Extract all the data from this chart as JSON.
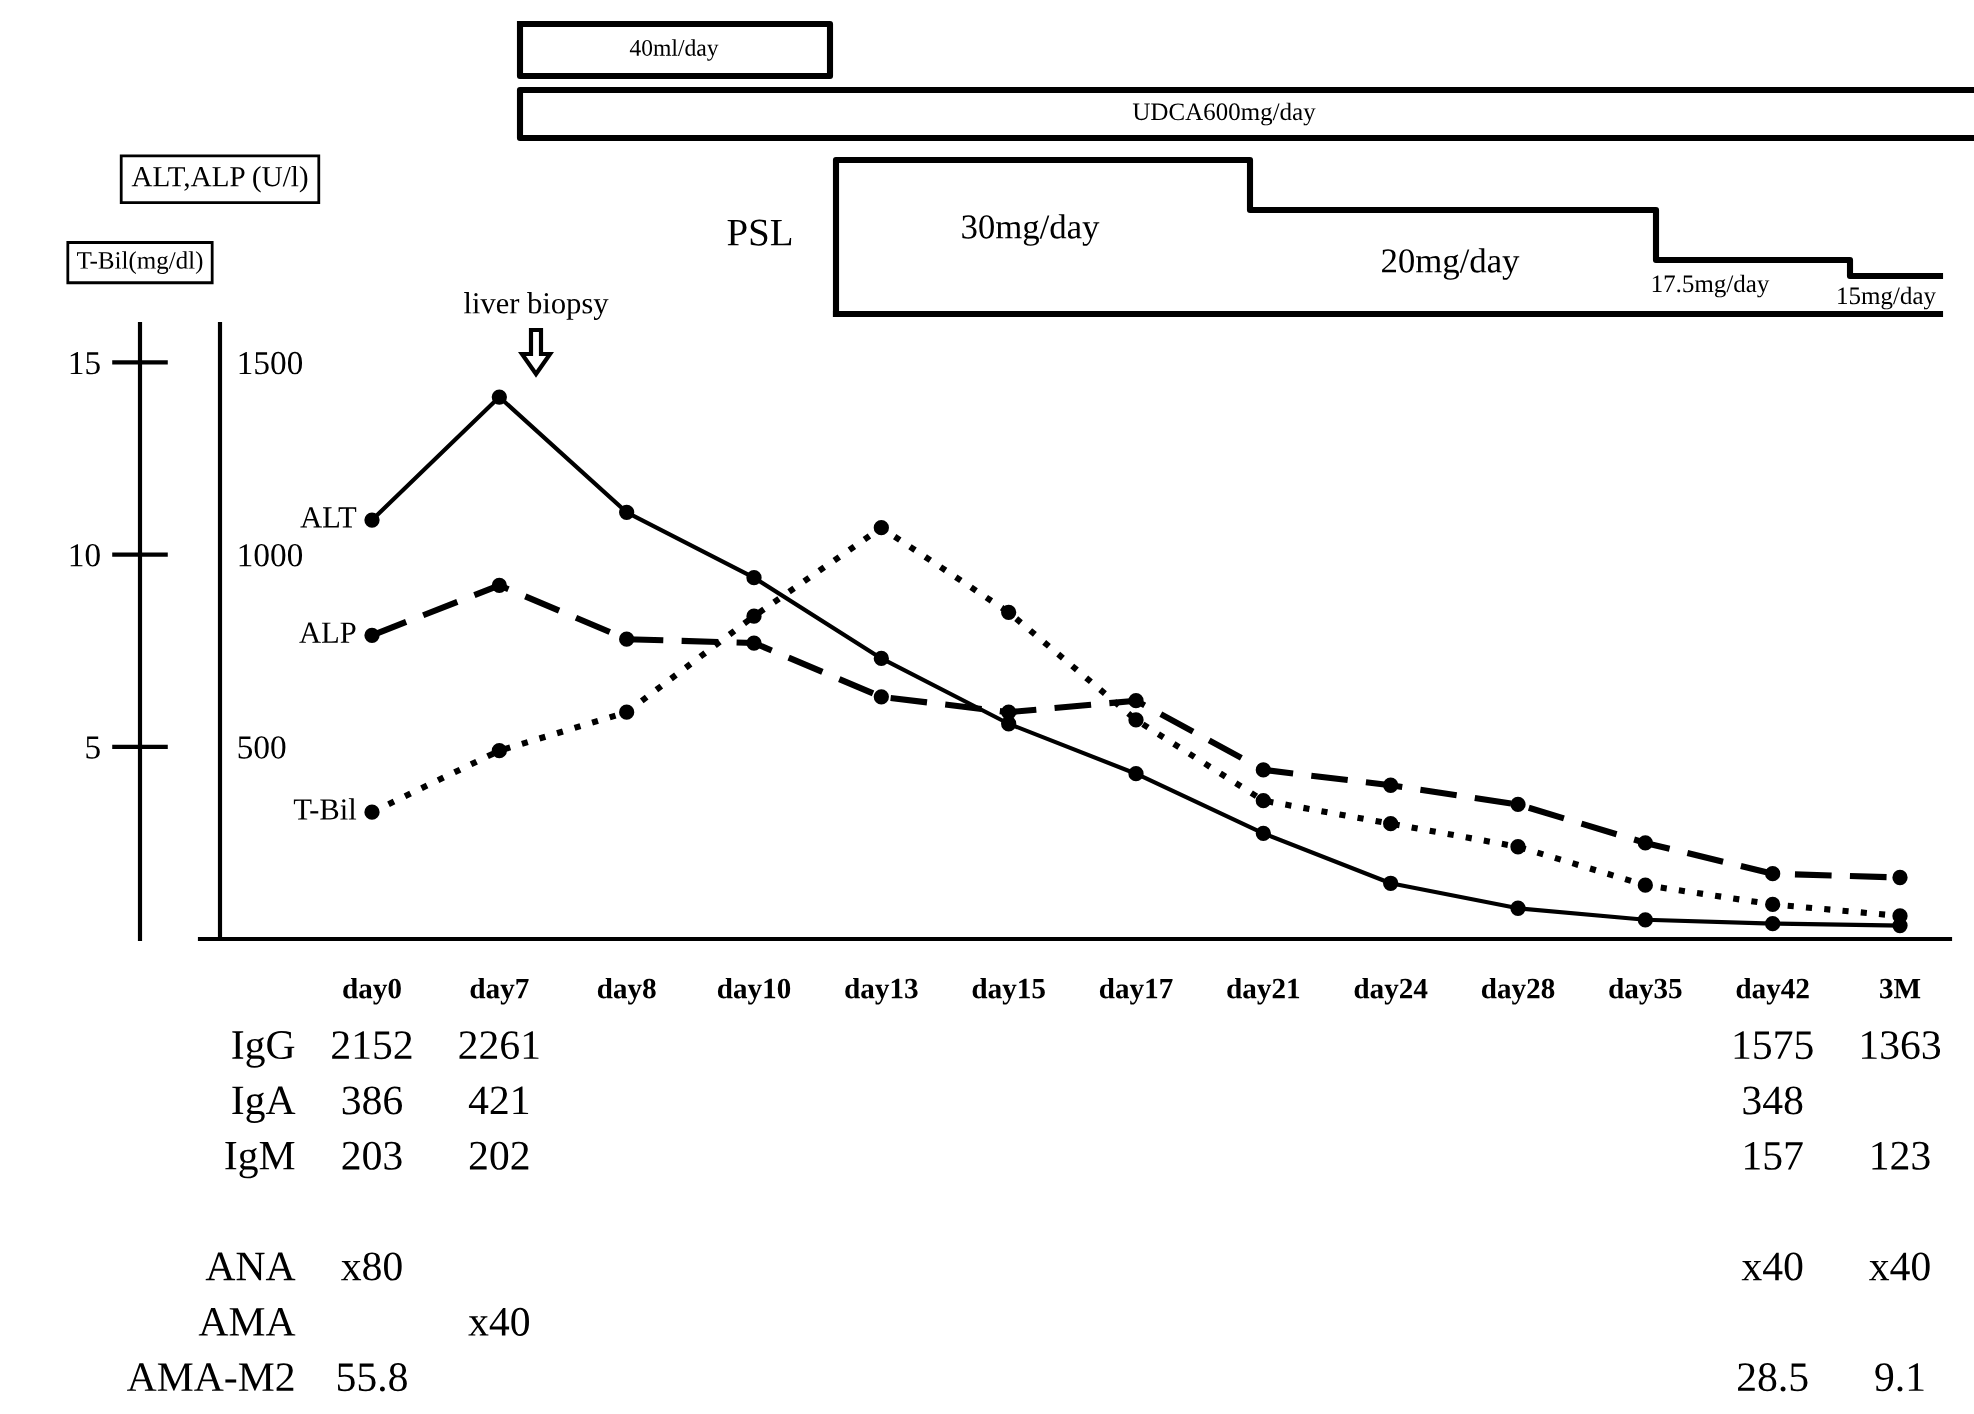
{
  "chart_data": [
    {
      "type": "line",
      "ylabel": "T-Bil(mg/dl)",
      "y2label": "ALT,ALP (U/l)",
      "categories": [
        "day0",
        "day7",
        "day8",
        "day10",
        "day13",
        "day15",
        "day17",
        "day21",
        "day24",
        "day28",
        "day35",
        "day42",
        "3M"
      ],
      "ylim": [
        0,
        16
      ],
      "yticks": [
        5,
        10,
        15
      ],
      "y2lim": [
        0,
        1600
      ],
      "y2ticks": [
        500,
        1000,
        1500
      ],
      "series": [
        {
          "name": "ALT",
          "axis": "y2",
          "color": "#000000",
          "line_style": "solid",
          "values": [
            1090,
            1410,
            1110,
            940,
            730,
            560,
            430,
            275,
            145,
            80,
            50,
            40,
            35
          ]
        },
        {
          "name": "ALP",
          "axis": "y2",
          "color": "#000000",
          "line_style": "dashed",
          "values": [
            790,
            920,
            780,
            770,
            630,
            590,
            620,
            440,
            400,
            350,
            250,
            170,
            160
          ]
        },
        {
          "name": "T-Bil",
          "axis": "y",
          "color": "#000000",
          "line_style": "dotted",
          "values": [
            3.3,
            4.9,
            5.9,
            8.4,
            10.7,
            8.5,
            5.7,
            3.6,
            3.0,
            2.4,
            1.4,
            0.9,
            0.6
          ]
        }
      ],
      "marker": "circle",
      "grid": false,
      "legend": false,
      "annotations": [
        "liver biopsy",
        "40ml/day",
        "UDCA600mg/day",
        "PSL",
        "30mg/day",
        "20mg/day",
        "17.5mg/day",
        "15mg/day"
      ]
    },
    {
      "type": "other",
      "categories": [
        null,
        null,
        null,
        null,
        null,
        null,
        null,
        null,
        null,
        null,
        null,
        null,
        null
      ],
      "y_categories": [
        "IgG",
        "IgA",
        "IgM",
        null,
        "ANA",
        "AMA",
        "AMA-M2"
      ],
      "cell_labels": [
        [
          "2152",
          "2261",
          null,
          null,
          null,
          null,
          null,
          null,
          null,
          null,
          null,
          "1575",
          "1363"
        ],
        [
          "386",
          "421",
          null,
          null,
          null,
          null,
          null,
          null,
          null,
          null,
          null,
          "348",
          null
        ],
        [
          "203",
          "202",
          null,
          null,
          null,
          null,
          null,
          null,
          null,
          null,
          null,
          "157",
          "123"
        ],
        [
          null,
          null,
          null,
          null,
          null,
          null,
          null,
          null,
          null,
          null,
          null,
          null,
          null
        ],
        [
          "x80",
          null,
          null,
          null,
          null,
          null,
          null,
          null,
          null,
          null,
          null,
          "x40",
          "x40"
        ],
        [
          null,
          "x40",
          null,
          null,
          null,
          null,
          null,
          null,
          null,
          null,
          null,
          null,
          null
        ],
        [
          "55.8",
          null,
          null,
          null,
          null,
          null,
          null,
          null,
          null,
          null,
          null,
          "28.5",
          "9.1"
        ]
      ]
    }
  ]
}
